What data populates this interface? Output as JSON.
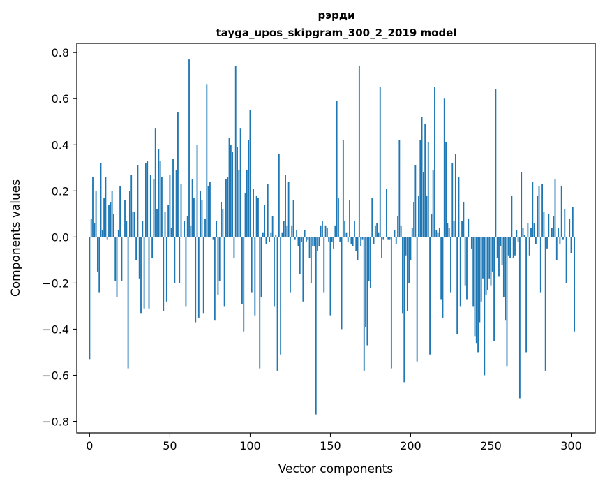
{
  "chart_data": {
    "type": "bar",
    "title": "рэрди",
    "subtitle": "tayga_upos_skipgram_300_2_2019 model",
    "xlabel": "Vector components",
    "ylabel": "Components values",
    "xlim": [
      -8,
      315
    ],
    "ylim": [
      -0.85,
      0.84
    ],
    "xticks": [
      0,
      50,
      100,
      150,
      200,
      250,
      300
    ],
    "yticks": [
      -0.8,
      -0.6,
      -0.4,
      -0.2,
      0.0,
      0.2,
      0.4,
      0.6,
      0.8
    ],
    "xtick_labels": [
      "0",
      "50",
      "100",
      "150",
      "200",
      "250",
      "300"
    ],
    "ytick_labels": [
      "−0.8",
      "−0.6",
      "−0.4",
      "−0.2",
      "0.0",
      "0.2",
      "0.4",
      "0.6",
      "0.8"
    ],
    "bar_color": "#1f77b4",
    "values": [
      -0.53,
      0.08,
      0.26,
      0.06,
      0.2,
      -0.15,
      -0.24,
      0.32,
      0.03,
      0.17,
      0.26,
      -0.01,
      0.14,
      0.15,
      0.2,
      0.1,
      -0.19,
      -0.26,
      0.03,
      0.22,
      -0.19,
      0.0,
      0.16,
      0.07,
      -0.57,
      0.2,
      0.27,
      0.11,
      0.11,
      -0.1,
      0.31,
      -0.18,
      -0.33,
      0.07,
      -0.31,
      0.32,
      0.33,
      -0.31,
      0.27,
      -0.09,
      0.25,
      0.47,
      0.12,
      0.38,
      0.33,
      0.26,
      -0.32,
      0.11,
      -0.28,
      0.14,
      0.27,
      0.04,
      0.34,
      -0.2,
      0.29,
      0.54,
      -0.2,
      0.23,
      0.0,
      0.07,
      -0.3,
      0.09,
      0.77,
      0.05,
      0.25,
      0.17,
      -0.37,
      0.4,
      -0.35,
      0.2,
      0.16,
      -0.33,
      0.08,
      0.66,
      0.22,
      0.24,
      0.0,
      -0.01,
      -0.36,
      0.07,
      -0.25,
      -0.19,
      0.15,
      0.12,
      -0.3,
      0.25,
      0.26,
      0.43,
      0.4,
      0.37,
      -0.09,
      0.74,
      0.39,
      0.29,
      0.47,
      -0.29,
      -0.41,
      0.19,
      0.29,
      0.42,
      0.55,
      -0.24,
      0.21,
      -0.34,
      0.18,
      0.17,
      -0.57,
      -0.26,
      0.02,
      0.14,
      -0.03,
      0.23,
      -0.02,
      0.02,
      0.09,
      -0.3,
      0.01,
      -0.58,
      0.36,
      -0.51,
      0.02,
      0.07,
      0.27,
      0.05,
      0.24,
      -0.24,
      0.05,
      0.16,
      -0.01,
      0.03,
      -0.04,
      -0.16,
      -0.02,
      -0.28,
      0.03,
      -0.02,
      -0.01,
      -0.09,
      -0.2,
      -0.04,
      -0.04,
      -0.77,
      -0.06,
      -0.04,
      0.05,
      0.07,
      -0.24,
      0.05,
      0.04,
      -0.02,
      -0.34,
      -0.02,
      -0.05,
      0.05,
      0.59,
      0.17,
      -0.02,
      -0.4,
      0.42,
      0.07,
      0.02,
      -0.02,
      0.16,
      -0.03,
      -0.04,
      0.07,
      -0.06,
      -0.1,
      0.74,
      -0.04,
      -0.01,
      -0.58,
      -0.39,
      -0.47,
      -0.19,
      -0.22,
      0.17,
      -0.03,
      0.05,
      0.06,
      0.02,
      0.65,
      -0.09,
      -0.01,
      0.0,
      0.21,
      -0.01,
      -0.01,
      -0.57,
      0.0,
      0.03,
      -0.03,
      0.09,
      0.42,
      0.05,
      -0.33,
      -0.63,
      -0.08,
      -0.32,
      -0.2,
      -0.1,
      0.04,
      0.15,
      0.31,
      -0.54,
      0.18,
      0.42,
      0.52,
      0.28,
      0.49,
      0.18,
      0.41,
      -0.51,
      0.1,
      0.29,
      0.65,
      0.03,
      0.02,
      0.04,
      -0.27,
      -0.35,
      0.6,
      0.41,
      0.06,
      0.04,
      -0.24,
      0.32,
      0.07,
      0.36,
      -0.42,
      0.26,
      -0.3,
      0.07,
      0.15,
      -0.21,
      -0.27,
      0.08,
      0.0,
      -0.05,
      -0.3,
      -0.43,
      -0.46,
      -0.5,
      -0.37,
      -0.28,
      -0.18,
      -0.6,
      -0.25,
      -0.23,
      -0.18,
      -0.21,
      -0.15,
      -0.45,
      0.64,
      -0.09,
      -0.17,
      -0.04,
      -0.12,
      -0.26,
      -0.36,
      -0.56,
      -0.08,
      -0.09,
      0.18,
      -0.09,
      -0.08,
      0.03,
      -0.02,
      -0.7,
      0.28,
      0.04,
      0.01,
      -0.5,
      0.06,
      -0.08,
      0.04,
      0.24,
      0.06,
      -0.03,
      0.18,
      0.22,
      -0.24,
      0.23,
      0.11,
      -0.58,
      -0.05,
      0.1,
      0.0,
      0.04,
      0.09,
      0.25,
      -0.1,
      0.04,
      -0.03,
      0.22,
      -0.01,
      0.12,
      -0.2,
      0.0,
      0.08,
      -0.07,
      0.13,
      -0.41
    ]
  }
}
